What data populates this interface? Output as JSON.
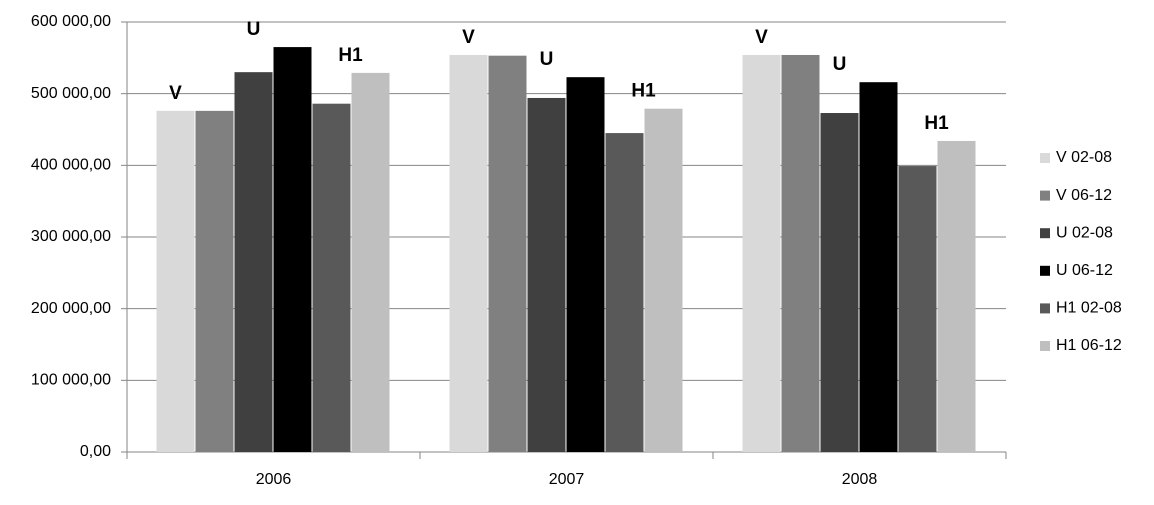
{
  "chart_data": {
    "type": "bar",
    "categories": [
      "2006",
      "2007",
      "2008"
    ],
    "series": [
      {
        "name": "V 02-08",
        "color": "#d9d9d9",
        "values": [
          476000,
          554000,
          554000
        ]
      },
      {
        "name": "V 06-12",
        "color": "#808080",
        "values": [
          476000,
          553000,
          554000
        ]
      },
      {
        "name": "U 02-08",
        "color": "#404040",
        "values": [
          530000,
          494000,
          473000
        ]
      },
      {
        "name": "U 06-12",
        "color": "#000000",
        "values": [
          565000,
          523000,
          516000
        ]
      },
      {
        "name": "H1 02-08",
        "color": "#595959",
        "values": [
          486000,
          445000,
          399000
        ]
      },
      {
        "name": "H1 06-12",
        "color": "#bfbfbf",
        "values": [
          529000,
          479000,
          434000
        ]
      }
    ],
    "annotations": [
      "V",
      "U",
      "H1"
    ],
    "ylim": [
      0,
      600000
    ],
    "yticks": [
      {
        "value": 0,
        "label": "0,00"
      },
      {
        "value": 100000,
        "label": "100 000,00"
      },
      {
        "value": 200000,
        "label": "200 000,00"
      },
      {
        "value": 300000,
        "label": "300 000,00"
      },
      {
        "value": 400000,
        "label": "400 000,00"
      },
      {
        "value": 500000,
        "label": "500 000,00"
      },
      {
        "value": 600000,
        "label": "600 000,00"
      }
    ],
    "grid": true,
    "legend": "right"
  }
}
